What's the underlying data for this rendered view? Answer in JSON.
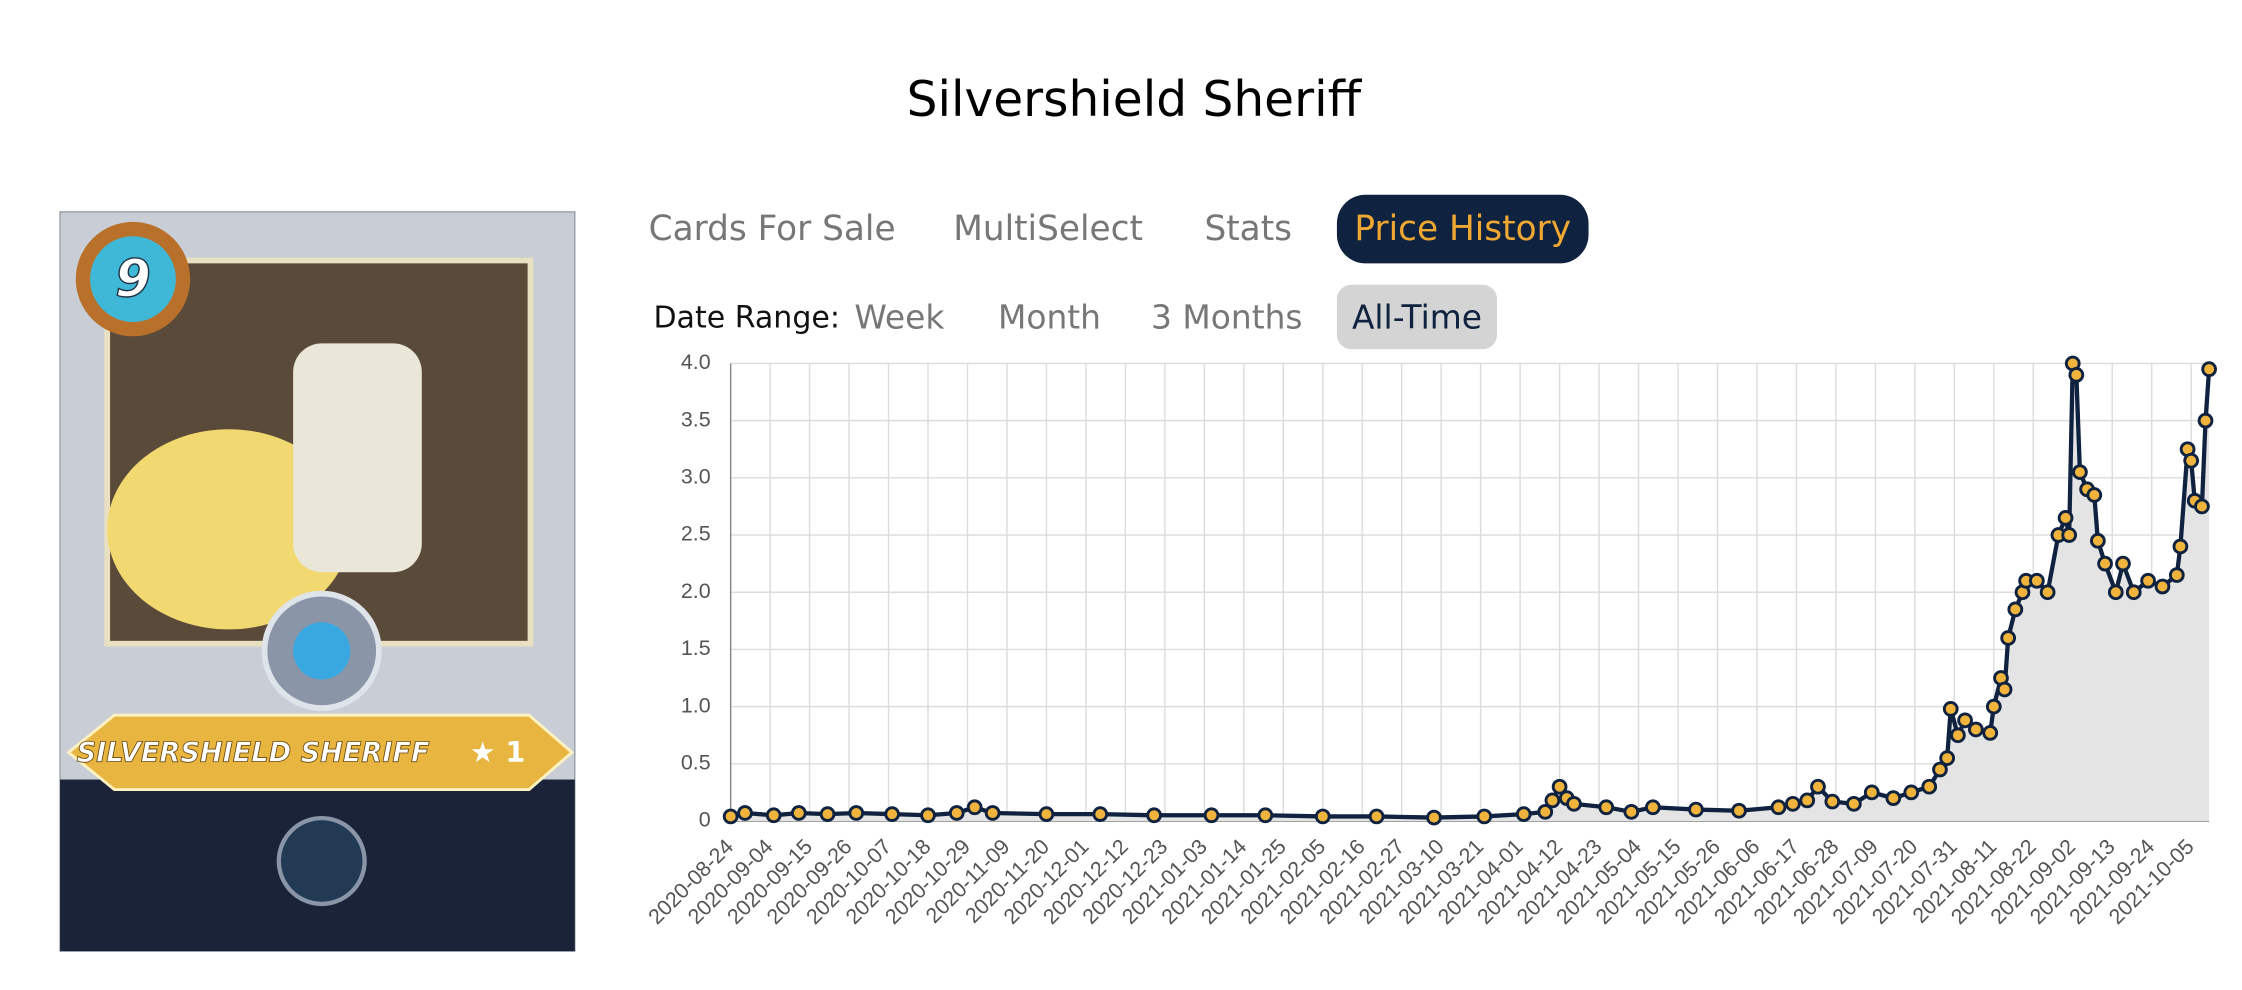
{
  "header": {
    "title": "Silvershield Sheriff"
  },
  "card": {
    "level": "9",
    "name": "SILVERSHIELD SHERIFF",
    "stars": "★ 1"
  },
  "tabs": [
    "Cards For Sale",
    "MultiSelect",
    "Stats",
    "Price History"
  ],
  "active_tab": 3,
  "date_range": {
    "label": "Date Range:",
    "options": [
      "Week",
      "Month",
      "3 Months",
      "All-Time"
    ],
    "active": 3
  },
  "chart_data": {
    "type": "line",
    "area": true,
    "grid": true,
    "line_color": "#0f2240",
    "point_color": "#f0b43c",
    "area_color": "#e4e4e4",
    "x": [
      "2020-08-24",
      "2020-08-28",
      "2020-09-05",
      "2020-09-12",
      "2020-09-20",
      "2020-09-28",
      "2020-10-08",
      "2020-10-18",
      "2020-10-26",
      "2020-10-31",
      "2020-11-05",
      "2020-11-20",
      "2020-12-05",
      "2020-12-20",
      "2021-01-05",
      "2021-01-20",
      "2021-02-05",
      "2021-02-20",
      "2021-03-08",
      "2021-03-22",
      "2021-04-02",
      "2021-04-08",
      "2021-04-10",
      "2021-04-12",
      "2021-04-14",
      "2021-04-16",
      "2021-04-25",
      "2021-05-02",
      "2021-05-08",
      "2021-05-20",
      "2021-06-01",
      "2021-06-12",
      "2021-06-16",
      "2021-06-20",
      "2021-06-23",
      "2021-06-27",
      "2021-07-03",
      "2021-07-08",
      "2021-07-14",
      "2021-07-19",
      "2021-07-24",
      "2021-07-27",
      "2021-07-29",
      "2021-07-30",
      "2021-08-01",
      "2021-08-03",
      "2021-08-06",
      "2021-08-10",
      "2021-08-11",
      "2021-08-13",
      "2021-08-14",
      "2021-08-15",
      "2021-08-17",
      "2021-08-19",
      "2021-08-20",
      "2021-08-23",
      "2021-08-26",
      "2021-08-29",
      "2021-08-31",
      "2021-09-01",
      "2021-09-02",
      "2021-09-03",
      "2021-09-04",
      "2021-09-06",
      "2021-09-08",
      "2021-09-09",
      "2021-09-11",
      "2021-09-14",
      "2021-09-16",
      "2021-09-19",
      "2021-09-23",
      "2021-09-27",
      "2021-10-01",
      "2021-10-02",
      "2021-10-04",
      "2021-10-05",
      "2021-10-06",
      "2021-10-08",
      "2021-10-09",
      "2021-10-10"
    ],
    "values": [
      0.04,
      0.07,
      0.05,
      0.07,
      0.06,
      0.07,
      0.06,
      0.05,
      0.07,
      0.12,
      0.07,
      0.06,
      0.06,
      0.05,
      0.05,
      0.05,
      0.04,
      0.04,
      0.03,
      0.04,
      0.06,
      0.08,
      0.18,
      0.3,
      0.2,
      0.15,
      0.12,
      0.08,
      0.12,
      0.1,
      0.09,
      0.12,
      0.15,
      0.18,
      0.3,
      0.17,
      0.15,
      0.25,
      0.2,
      0.25,
      0.3,
      0.45,
      0.55,
      0.98,
      0.75,
      0.88,
      0.8,
      0.77,
      1.0,
      1.25,
      1.15,
      1.6,
      1.85,
      2.0,
      2.1,
      2.1,
      2.0,
      2.5,
      2.65,
      2.5,
      4.0,
      3.9,
      3.05,
      2.9,
      2.85,
      2.45,
      2.25,
      2.0,
      2.25,
      2.0,
      2.1,
      2.05,
      2.15,
      2.4,
      3.25,
      3.15,
      2.8,
      2.75,
      3.5,
      3.95
    ],
    "xlim": [
      "2020-08-24",
      "2021-10-10"
    ],
    "xticks": [
      "2020-08-24",
      "2020-09-04",
      "2020-09-15",
      "2020-09-26",
      "2020-10-07",
      "2020-10-18",
      "2020-10-29",
      "2020-11-09",
      "2020-11-20",
      "2020-12-01",
      "2020-12-12",
      "2020-12-23",
      "2021-01-03",
      "2021-01-14",
      "2021-01-25",
      "2021-02-05",
      "2021-02-16",
      "2021-02-27",
      "2021-03-10",
      "2021-03-21",
      "2021-04-01",
      "2021-04-12",
      "2021-04-23",
      "2021-05-04",
      "2021-05-15",
      "2021-05-26",
      "2021-06-06",
      "2021-06-17",
      "2021-06-28",
      "2021-07-09",
      "2021-07-20",
      "2021-07-31",
      "2021-08-11",
      "2021-08-22",
      "2021-09-02",
      "2021-09-13",
      "2021-09-24",
      "2021-10-05"
    ],
    "ylim": [
      0,
      4
    ],
    "yticks": [
      0,
      0.5,
      {
        "value": 1,
        "label": "1.0"
      },
      1.5,
      {
        "value": 2,
        "label": "2.0"
      },
      2.5,
      {
        "value": 3,
        "label": "3.0"
      },
      3.5,
      {
        "value": 4,
        "label": "4.0"
      }
    ]
  }
}
